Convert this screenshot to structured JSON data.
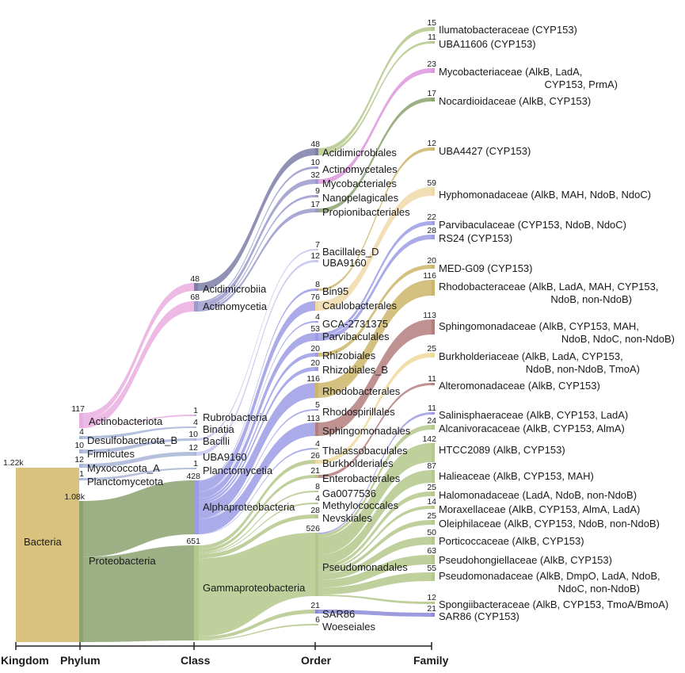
{
  "axis": [
    "Kingdom",
    "Phylum",
    "Class",
    "Order",
    "Family"
  ],
  "colors": {
    "bacteria": "#d9c27e",
    "actino": "#e9aee0",
    "proteo": "#8ba170",
    "acidimicrobiia": "#7e7ea8",
    "actinomycetia": "#9a9acc",
    "alpha": "#9c9ce6",
    "gamma": "#b5c88c",
    "sar86": "#8a8ad8",
    "rhodobacterales": "#cdb66a",
    "sphingomonadales": "#b57e7e",
    "mycobacteriaceae": "#dd96dd",
    "hyphomonadaceae": "#f0d9a8",
    "alkb_light": "#f0d89a",
    "small": "#a7b5d6",
    "lilac": "#c6c6ee"
  },
  "nodes": {
    "bacteria": {
      "label": "Bacteria",
      "count": "1.22k"
    },
    "actinobacteriota": {
      "label": "Actinobacteriota",
      "count": "117"
    },
    "desulfobacterota": {
      "label": "Desulfobacterota_B",
      "count": "4"
    },
    "firmicutes": {
      "label": "Firmicutes",
      "count": "10"
    },
    "myxococcota": {
      "label": "Myxococcota_A",
      "count": "12"
    },
    "planctomycetota": {
      "label": "Planctomycetota",
      "count": "1"
    },
    "proteobacteria": {
      "label": "Proteobacteria",
      "count": "1.08k"
    },
    "acidimicrobiia": {
      "label": "Acidimicrobiia",
      "count": "48"
    },
    "actinomycetia": {
      "label": "Actinomycetia",
      "count": "68"
    },
    "rubrobacteria": {
      "label": "Rubrobacteria",
      "count": "1"
    },
    "binatia": {
      "label": "Binatia",
      "count": "4"
    },
    "bacilli": {
      "label": "Bacilli",
      "count": "10"
    },
    "uba9160_c": {
      "label": "UBA9160",
      "count": "12"
    },
    "planctomycetia": {
      "label": "Planctomycetia",
      "count": "1"
    },
    "alphaproteobacteria": {
      "label": "Alphaproteobacteria",
      "count": "428"
    },
    "gammaproteobacteria": {
      "label": "Gammaproteobacteria",
      "count": "651"
    },
    "acidimicrobiales": {
      "label": "Acidimicrobiales",
      "count": "48"
    },
    "actinomycetales": {
      "label": "Actinomycetales",
      "count": "10"
    },
    "mycobacteriales": {
      "label": "Mycobacteriales",
      "count": "32"
    },
    "nanopelagicales": {
      "label": "Nanopelagicales",
      "count": "9"
    },
    "propionibacteriales": {
      "label": "Propionibacteriales",
      "count": "17"
    },
    "bacillales_d": {
      "label": "Bacillales_D",
      "count": "7"
    },
    "uba9160_o": {
      "label": "UBA9160",
      "count": "12"
    },
    "bin95": {
      "label": "Bin95",
      "count": "8"
    },
    "caulobacterales": {
      "label": "Caulobacterales",
      "count": "76"
    },
    "gca2731375": {
      "label": "GCA-2731375",
      "count": "4"
    },
    "parvibaculales": {
      "label": "Parvibaculales",
      "count": "53"
    },
    "rhizobiales": {
      "label": "Rhizobiales",
      "count": "20"
    },
    "rhizobiales_b": {
      "label": "Rhizobiales_B",
      "count": "20"
    },
    "rhodobacterales": {
      "label": "Rhodobacterales",
      "count": "116"
    },
    "rhodospirillales": {
      "label": "Rhodospirillales",
      "count": "5"
    },
    "sphingomonadales": {
      "label": "Sphingomonadales",
      "count": "113"
    },
    "thalassobaculales": {
      "label": "Thalassobaculales",
      "count": "4"
    },
    "burkholderiales": {
      "label": "Burkholderiales",
      "count": "26"
    },
    "enterobacterales": {
      "label": "Enterobacterales",
      "count": "21"
    },
    "ga0077536": {
      "label": "Ga0077536",
      "count": "8"
    },
    "methylococcales": {
      "label": "Methylococcales",
      "count": "4"
    },
    "nevskiales": {
      "label": "Nevskiales",
      "count": "28"
    },
    "pseudomonadales": {
      "label": "Pseudomonadales",
      "count": "526"
    },
    "sar86_o": {
      "label": "SAR86",
      "count": "21"
    },
    "woeseiales": {
      "label": "Woeseiales",
      "count": "6"
    },
    "ilumatobacteraceae": {
      "label": "Ilumatobacteraceae (CYP153)",
      "count": "15"
    },
    "uba11606": {
      "label": "UBA11606 (CYP153)",
      "count": "11"
    },
    "mycobacteriaceae": {
      "label": "Mycobacteriaceae (AlkB, LadA,",
      "label2": "CYP153, PrmA)",
      "count": "23"
    },
    "nocardioidaceae": {
      "label": "Nocardioidaceae (AlkB, CYP153)",
      "count": "17"
    },
    "uba4427": {
      "label": "UBA4427 (CYP153)",
      "count": "12"
    },
    "hyphomonadaceae": {
      "label": "Hyphomonadaceae (AlkB, MAH, NdoB, NdoC)",
      "count": "59"
    },
    "parvibaculaceae": {
      "label": "Parvibaculaceae (CYP153, NdoB, NdoC)",
      "count": "22"
    },
    "rs24": {
      "label": "RS24 (CYP153)",
      "count": "28"
    },
    "medg09": {
      "label": "MED-G09 (CYP153)",
      "count": "20"
    },
    "rhodobacteraceae": {
      "label": "Rhodobacteraceae (AlkB, LadA, MAH, CYP153,",
      "label2": "NdoB, non-NdoB)",
      "count": "116"
    },
    "sphingomonadaceae": {
      "label": "Sphingomonadaceae (AlkB, CYP153, MAH,",
      "label2": "NdoB, NdoC, non-NdoB)",
      "count": "113"
    },
    "burkholderiaceae": {
      "label": "Burkholderiaceae (AlkB, LadA, CYP153,",
      "label2": "NdoB, non-NdoB, TmoA)",
      "count": "25"
    },
    "alteromonadaceae": {
      "label": "Alteromonadaceae (AlkB, CYP153)",
      "count": "11"
    },
    "salinisphaeraceae": {
      "label": "Salinisphaeraceae (AlkB, CYP153, LadA)",
      "count": "11"
    },
    "alcanivoracaceae": {
      "label": "Alcanivoracaceae (AlkB, CYP153, AlmA)",
      "count": "24"
    },
    "htcc2089": {
      "label": "HTCC2089 (AlkB, CYP153)",
      "count": "142"
    },
    "halieaceae": {
      "label": "Halieaceae (AlkB, CYP153, MAH)",
      "count": "87"
    },
    "halomonadaceae": {
      "label": "Halomonadaceae (LadA, NdoB, non-NdoB)",
      "count": "25"
    },
    "moraxellaceae": {
      "label": "Moraxellaceae (AlkB, CYP153, AlmA, LadA)",
      "count": "14"
    },
    "oleiphilaceae": {
      "label": "Oleiphilaceae (AlkB, CYP153, NdoB, non-NdoB)",
      "count": "25"
    },
    "porticoccaceae": {
      "label": "Porticoccaceae (AlkB, CYP153)",
      "count": "50"
    },
    "pseudohongiellaceae": {
      "label": "Pseudohongiellaceae (AlkB, CYP153)",
      "count": "63"
    },
    "pseudomonadaceae": {
      "label": "Pseudomonadaceae (AlkB, DmpO, LadA, NdoB,",
      "label2": "NdoC, non-NdoB)",
      "count": "55"
    },
    "spongiibacteraceae": {
      "label": "Spongiibacteraceae (AlkB, CYP153, TmoA/BmoA)",
      "count": "12"
    },
    "sar86_f": {
      "label": "SAR86 (CYP153)",
      "count": "21"
    }
  },
  "links": [
    [
      "bacteria",
      "actinobacteriota",
      117,
      "bacteria"
    ],
    [
      "bacteria",
      "desulfobacterota",
      4,
      "bacteria"
    ],
    [
      "bacteria",
      "firmicutes",
      10,
      "bacteria"
    ],
    [
      "bacteria",
      "myxococcota",
      12,
      "bacteria"
    ],
    [
      "bacteria",
      "planctomycetota",
      1,
      "bacteria"
    ],
    [
      "bacteria",
      "proteobacteria",
      1080,
      "bacteria"
    ],
    [
      "actinobacteriota",
      "acidimicrobiia",
      48,
      "actino"
    ],
    [
      "actinobacteriota",
      "actinomycetia",
      68,
      "actino"
    ],
    [
      "actinobacteriota",
      "rubrobacteria",
      1,
      "actino"
    ],
    [
      "desulfobacterota",
      "binatia",
      4,
      "small"
    ],
    [
      "firmicutes",
      "bacilli",
      10,
      "small"
    ],
    [
      "myxococcota",
      "uba9160_c",
      12,
      "small"
    ],
    [
      "planctomycetota",
      "planctomycetia",
      1,
      "small"
    ],
    [
      "proteobacteria",
      "alphaproteobacteria",
      428,
      "proteo"
    ],
    [
      "proteobacteria",
      "gammaproteobacteria",
      651,
      "proteo"
    ],
    [
      "acidimicrobiia",
      "acidimicrobiales",
      48,
      "acidimicrobiia"
    ],
    [
      "actinomycetia",
      "actinomycetales",
      10,
      "actinomycetia"
    ],
    [
      "actinomycetia",
      "mycobacteriales",
      32,
      "actinomycetia"
    ],
    [
      "actinomycetia",
      "nanopelagicales",
      9,
      "actinomycetia"
    ],
    [
      "actinomycetia",
      "propionibacteriales",
      17,
      "actinomycetia"
    ],
    [
      "bacilli",
      "bacillales_d",
      7,
      "lilac"
    ],
    [
      "uba9160_c",
      "uba9160_o",
      12,
      "lilac"
    ],
    [
      "alphaproteobacteria",
      "bin95",
      8,
      "alpha"
    ],
    [
      "alphaproteobacteria",
      "caulobacterales",
      76,
      "alpha"
    ],
    [
      "alphaproteobacteria",
      "gca2731375",
      4,
      "alpha"
    ],
    [
      "alphaproteobacteria",
      "parvibaculales",
      53,
      "alpha"
    ],
    [
      "alphaproteobacteria",
      "rhizobiales",
      20,
      "alpha"
    ],
    [
      "alphaproteobacteria",
      "rhizobiales_b",
      20,
      "alpha"
    ],
    [
      "alphaproteobacteria",
      "rhodobacterales",
      116,
      "alpha"
    ],
    [
      "alphaproteobacteria",
      "rhodospirillales",
      5,
      "alpha"
    ],
    [
      "alphaproteobacteria",
      "sphingomonadales",
      113,
      "alpha"
    ],
    [
      "alphaproteobacteria",
      "thalassobaculales",
      4,
      "alpha"
    ],
    [
      "gammaproteobacteria",
      "burkholderiales",
      26,
      "gamma"
    ],
    [
      "gammaproteobacteria",
      "enterobacterales",
      21,
      "gamma"
    ],
    [
      "gammaproteobacteria",
      "ga0077536",
      8,
      "gamma"
    ],
    [
      "gammaproteobacteria",
      "methylococcales",
      4,
      "gamma"
    ],
    [
      "gammaproteobacteria",
      "nevskiales",
      28,
      "gamma"
    ],
    [
      "gammaproteobacteria",
      "pseudomonadales",
      526,
      "gamma"
    ],
    [
      "gammaproteobacteria",
      "sar86_o",
      21,
      "gamma"
    ],
    [
      "gammaproteobacteria",
      "woeseiales",
      6,
      "gamma"
    ],
    [
      "acidimicrobiales",
      "ilumatobacteraceae",
      15,
      "gamma"
    ],
    [
      "acidimicrobiales",
      "uba11606",
      11,
      "gamma"
    ],
    [
      "mycobacteriales",
      "mycobacteriaceae",
      23,
      "mycobacteriaceae"
    ],
    [
      "propionibacteriales",
      "nocardioidaceae",
      17,
      "proteo"
    ],
    [
      "bin95",
      "uba4427",
      12,
      "rhodobacterales"
    ],
    [
      "caulobacterales",
      "hyphomonadaceae",
      59,
      "hyphomonadaceae"
    ],
    [
      "parvibaculales",
      "parvibaculaceae",
      22,
      "alpha"
    ],
    [
      "parvibaculales",
      "rs24",
      28,
      "alpha"
    ],
    [
      "rhizobiales",
      "medg09",
      20,
      "rhodobacterales"
    ],
    [
      "rhodobacterales",
      "rhodobacteraceae",
      116,
      "rhodobacterales"
    ],
    [
      "sphingomonadales",
      "sphingomonadaceae",
      113,
      "sphingomonadales"
    ],
    [
      "burkholderiales",
      "burkholderiaceae",
      25,
      "alkb_light"
    ],
    [
      "enterobacterales",
      "alteromonadaceae",
      11,
      "sphingomonadales"
    ],
    [
      "pseudomonadales",
      "salinisphaeraceae",
      11,
      "alpha"
    ],
    [
      "pseudomonadales",
      "alcanivoracaceae",
      24,
      "gamma"
    ],
    [
      "pseudomonadales",
      "htcc2089",
      142,
      "gamma"
    ],
    [
      "pseudomonadales",
      "halieaceae",
      87,
      "gamma"
    ],
    [
      "pseudomonadales",
      "halomonadaceae",
      25,
      "gamma"
    ],
    [
      "pseudomonadales",
      "moraxellaceae",
      14,
      "gamma"
    ],
    [
      "pseudomonadales",
      "oleiphilaceae",
      25,
      "gamma"
    ],
    [
      "pseudomonadales",
      "porticoccaceae",
      50,
      "gamma"
    ],
    [
      "pseudomonadales",
      "pseudohongiellaceae",
      63,
      "gamma"
    ],
    [
      "pseudomonadales",
      "pseudomonadaceae",
      55,
      "gamma"
    ],
    [
      "pseudomonadales",
      "spongiibacteraceae",
      12,
      "gamma"
    ],
    [
      "sar86_o",
      "sar86_f",
      21,
      "sar86"
    ]
  ]
}
